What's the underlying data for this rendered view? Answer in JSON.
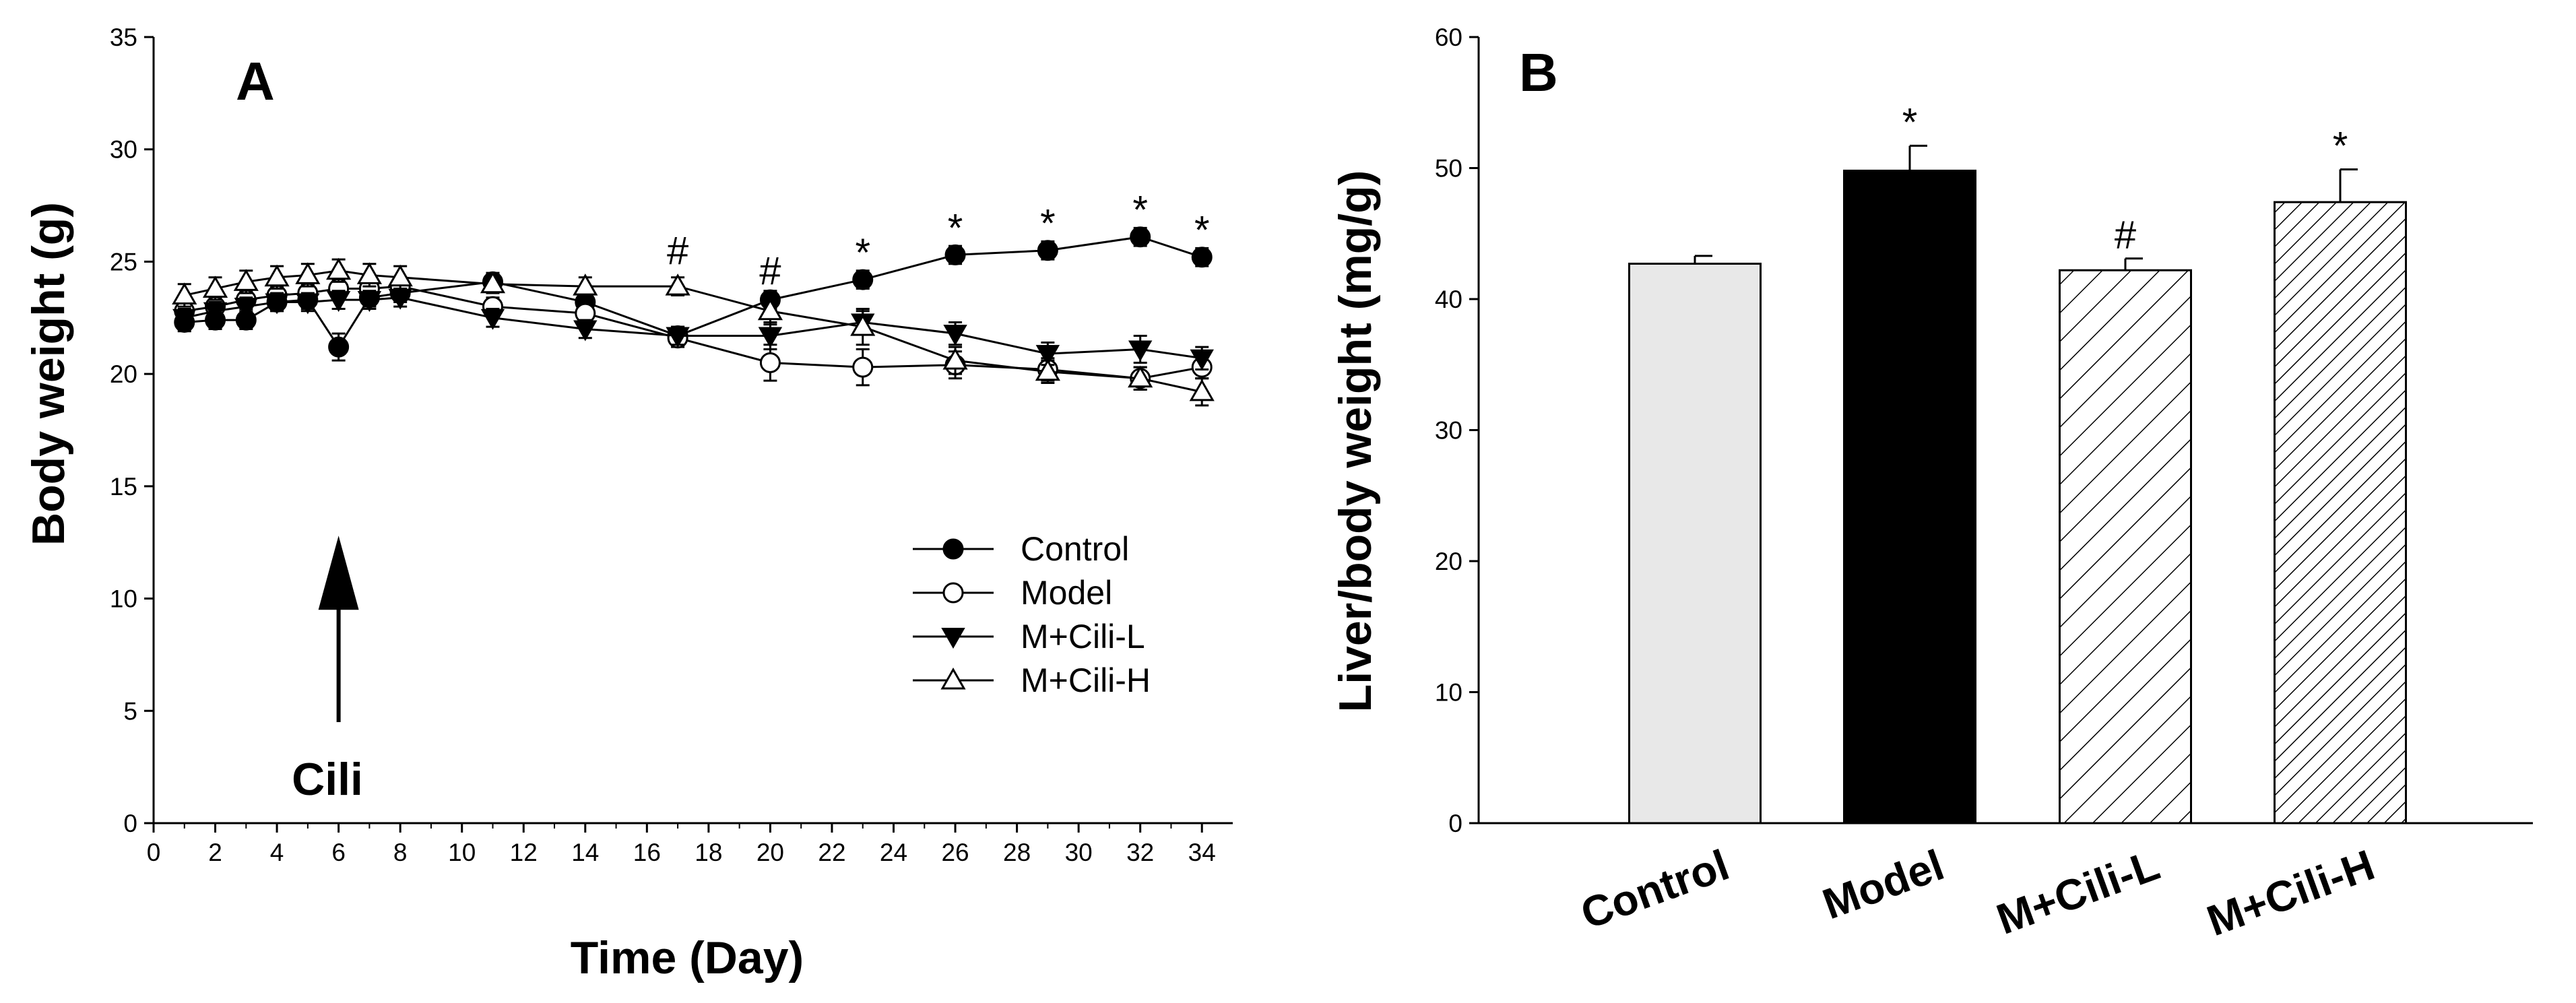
{
  "chart_data": [
    {
      "type": "line",
      "panel_label": "A",
      "xlabel": "Time (Day)",
      "ylabel": "Body weight (g)",
      "xlim": [
        0,
        35
      ],
      "ylim": [
        0,
        35
      ],
      "x_ticks": [
        0,
        2,
        4,
        6,
        8,
        10,
        12,
        14,
        16,
        18,
        20,
        22,
        24,
        26,
        28,
        30,
        32,
        34
      ],
      "y_ticks": [
        0,
        5,
        10,
        15,
        20,
        25,
        30,
        35
      ],
      "legend_position": "right",
      "series": [
        {
          "name": "Control",
          "marker": "filled-circle",
          "x": [
            1,
            2,
            3,
            4,
            5,
            6,
            7,
            8,
            11,
            14,
            17,
            20,
            23,
            26,
            29,
            32,
            34
          ],
          "y": [
            22.3,
            22.4,
            22.4,
            23.2,
            23.3,
            21.2,
            23.4,
            23.6,
            24.1,
            23.2,
            21.7,
            23.3,
            24.2,
            25.3,
            25.5,
            26.1,
            25.2
          ],
          "err": [
            0.4,
            0.4,
            0.4,
            0.4,
            0.4,
            0.6,
            0.4,
            0.4,
            0.4,
            0.4,
            0.4,
            0.4,
            0.4,
            0.4,
            0.4,
            0.4,
            0.4
          ]
        },
        {
          "name": "Model",
          "marker": "open-circle",
          "x": [
            1,
            2,
            3,
            4,
            5,
            6,
            7,
            8,
            11,
            14,
            17,
            20,
            23,
            26,
            29,
            32,
            34
          ],
          "y": [
            22.8,
            23.0,
            23.3,
            23.5,
            23.6,
            23.8,
            23.8,
            23.9,
            23.0,
            22.7,
            21.6,
            20.5,
            20.3,
            20.4,
            20.2,
            19.8,
            20.3
          ],
          "err": [
            0.4,
            0.4,
            0.4,
            0.4,
            0.4,
            0.4,
            0.4,
            0.4,
            0.4,
            0.4,
            0.4,
            0.8,
            0.8,
            0.6,
            0.5,
            0.5,
            0.5
          ]
        },
        {
          "name": "M+Cili-L",
          "marker": "filled-triangle-down",
          "x": [
            1,
            2,
            3,
            4,
            5,
            6,
            7,
            8,
            11,
            14,
            17,
            20,
            23,
            26,
            29,
            32,
            34
          ],
          "y": [
            22.5,
            22.8,
            23.0,
            23.2,
            23.2,
            23.3,
            23.3,
            23.4,
            22.5,
            22.0,
            21.7,
            21.7,
            22.3,
            21.8,
            20.9,
            21.1,
            20.7
          ],
          "err": [
            0.4,
            0.4,
            0.4,
            0.4,
            0.4,
            0.4,
            0.4,
            0.4,
            0.4,
            0.4,
            0.4,
            0.6,
            0.5,
            0.5,
            0.5,
            0.6,
            0.5
          ]
        },
        {
          "name": "M+Cili-H",
          "marker": "open-triangle-up",
          "x": [
            1,
            2,
            3,
            4,
            5,
            6,
            7,
            8,
            11,
            14,
            17,
            20,
            23,
            26,
            29,
            32,
            34
          ],
          "y": [
            23.5,
            23.8,
            24.1,
            24.3,
            24.4,
            24.6,
            24.4,
            24.3,
            24.0,
            23.9,
            23.9,
            22.8,
            22.1,
            20.6,
            20.1,
            19.8,
            19.2
          ],
          "err": [
            0.5,
            0.5,
            0.5,
            0.5,
            0.5,
            0.5,
            0.5,
            0.5,
            0.4,
            0.4,
            0.4,
            0.6,
            0.8,
            0.6,
            0.5,
            0.5,
            0.6
          ]
        }
      ],
      "annotations": [
        {
          "x": 17,
          "y": 25.5,
          "text": "#"
        },
        {
          "x": 20,
          "y": 24.6,
          "text": "#"
        },
        {
          "x": 23,
          "y": 25.4,
          "text": "*"
        },
        {
          "x": 26,
          "y": 26.5,
          "text": "*"
        },
        {
          "x": 29,
          "y": 26.7,
          "text": "*"
        },
        {
          "x": 32,
          "y": 27.3,
          "text": "*"
        },
        {
          "x": 34,
          "y": 26.4,
          "text": "*"
        }
      ],
      "arrow": {
        "x": 6,
        "y_from": 4.5,
        "y_to": 12.8,
        "label": "Cili"
      }
    },
    {
      "type": "bar",
      "panel_label": "B",
      "xlabel": "",
      "ylabel": "Liver/body weight (mg/g)",
      "ylim": [
        0,
        60
      ],
      "y_ticks": [
        0,
        10,
        20,
        30,
        40,
        50,
        60
      ],
      "categories": [
        "Control",
        "Model",
        "M+Cili-L",
        "M+Cili-H"
      ],
      "values": [
        42.7,
        49.8,
        42.2,
        47.4
      ],
      "err": [
        0.6,
        1.9,
        0.9,
        2.5
      ],
      "fills": [
        "light-gray",
        "black",
        "hatch-sparse",
        "hatch-dense"
      ],
      "annotations": [
        "",
        "*",
        "#",
        "*"
      ]
    }
  ],
  "colors": {
    "ink": "#000000",
    "light_bar": "#e8e8e8",
    "background": "#ffffff"
  }
}
